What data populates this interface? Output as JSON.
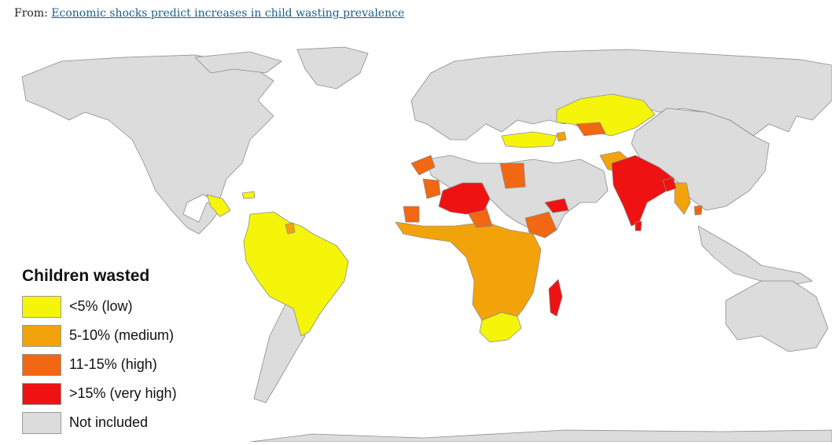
{
  "source": {
    "prefix": "From: ",
    "link_text": "Economic shocks predict increases in child wasting prevalence"
  },
  "map": {
    "legend_title": "Children wasted",
    "categories": [
      {
        "key": "low",
        "label": "<5% (low)",
        "color": "#f5f50a"
      },
      {
        "key": "medium",
        "label": "5-10% (medium)",
        "color": "#f3a30a"
      },
      {
        "key": "high",
        "label": "11-15% (high)",
        "color": "#f26711"
      },
      {
        "key": "very_high",
        "label": ">15% (very high)",
        "color": "#ee1212"
      },
      {
        "key": "not_included",
        "label": "Not included",
        "color": "#dcdcdc"
      }
    ],
    "border_color": "#8c8c8c",
    "ocean_color": "#ffffff"
  }
}
